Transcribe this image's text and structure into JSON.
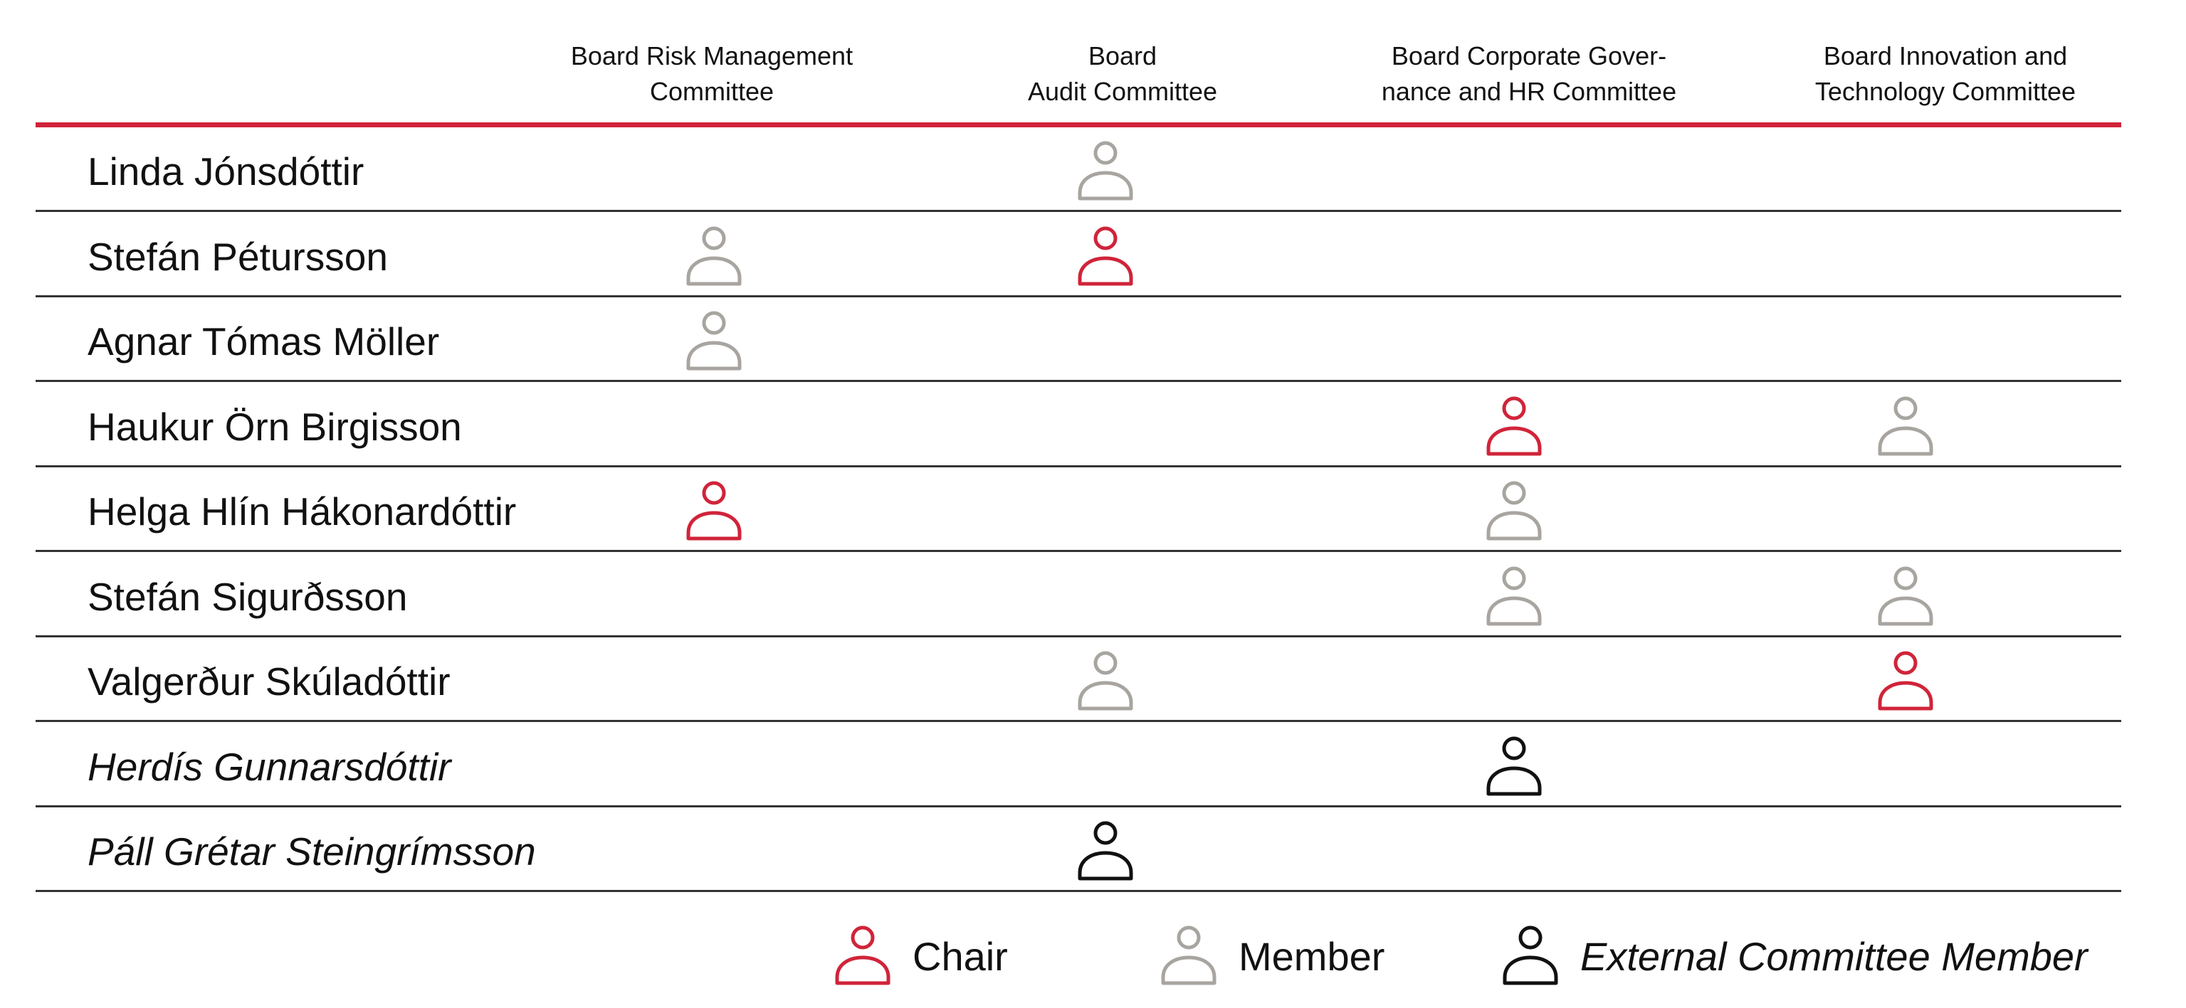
{
  "committees": [
    {
      "key": "risk",
      "label": "Board Risk Management\nCommittee"
    },
    {
      "key": "audit",
      "label": "Board\nAudit Committee"
    },
    {
      "key": "governance",
      "label": "Board Corporate Gover-\nnance and HR Committee"
    },
    {
      "key": "innovation",
      "label": "Board Innovation and\nTechnology Committee"
    }
  ],
  "members": [
    {
      "name": "Linda Jónsdóttir",
      "external": false,
      "roles": {
        "risk": null,
        "audit": "member",
        "governance": null,
        "innovation": null
      }
    },
    {
      "name": "Stefán Pétursson",
      "external": false,
      "roles": {
        "risk": "member",
        "audit": "chair",
        "governance": null,
        "innovation": null
      }
    },
    {
      "name": "Agnar Tómas Möller",
      "external": false,
      "roles": {
        "risk": "member",
        "audit": null,
        "governance": null,
        "innovation": null
      }
    },
    {
      "name": "Haukur Örn Birgisson",
      "external": false,
      "roles": {
        "risk": null,
        "audit": null,
        "governance": "chair",
        "innovation": "member"
      }
    },
    {
      "name": "Helga Hlín Hákonardóttir",
      "external": false,
      "roles": {
        "risk": "chair",
        "audit": null,
        "governance": "member",
        "innovation": null
      }
    },
    {
      "name": "Stefán Sigurðsson",
      "external": false,
      "roles": {
        "risk": null,
        "audit": null,
        "governance": "member",
        "innovation": "member"
      }
    },
    {
      "name": "Valgerður Skúladóttir",
      "external": false,
      "roles": {
        "risk": null,
        "audit": "member",
        "governance": null,
        "innovation": "chair"
      }
    },
    {
      "name": "Herdís Gunnarsdóttir",
      "external": true,
      "roles": {
        "risk": null,
        "audit": null,
        "governance": "external",
        "innovation": null
      }
    },
    {
      "name": "Páll Grétar Steingrímsson",
      "external": true,
      "roles": {
        "risk": null,
        "audit": "external",
        "governance": null,
        "innovation": null
      }
    }
  ],
  "legend": [
    {
      "role": "chair",
      "label": "Chair",
      "icon": "person-icon"
    },
    {
      "role": "member",
      "label": "Member",
      "icon": "person-icon"
    },
    {
      "role": "external",
      "label": "External Committee Member",
      "icon": "person-icon"
    }
  ],
  "colors": {
    "chair": "#d0243a",
    "member": "#a8a5a0",
    "external": "#111111",
    "accent_rule": "#d0243a"
  }
}
